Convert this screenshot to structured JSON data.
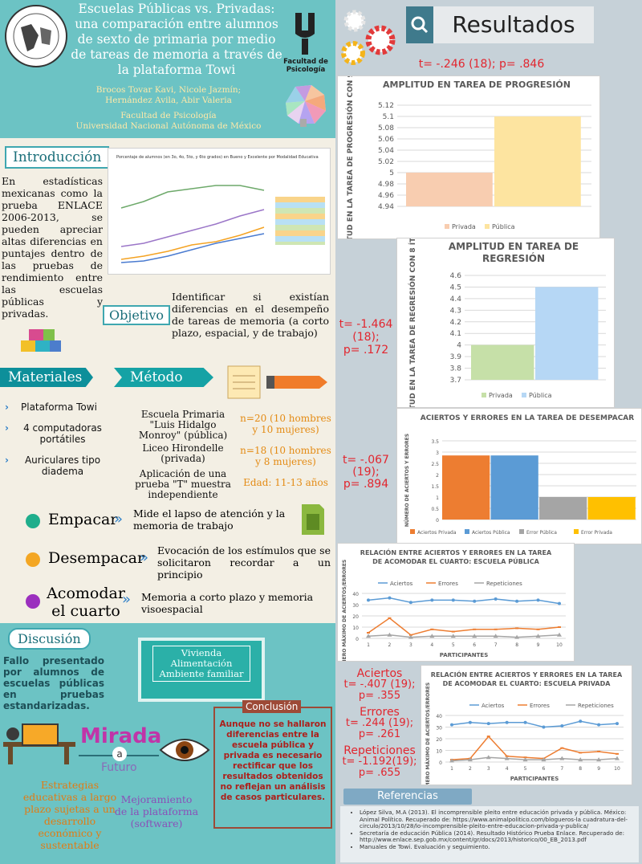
{
  "header": {
    "title": "Escuelas Públicas vs. Privadas: una comparación entre alumnos de sexto de primaria por medio de tareas de memoria a través de la plataforma Towi",
    "authors_line1": "Brocos Tovar Kavi, Nicole Jazmín;",
    "authors_line2": "Hernández Avila, Abir Valeria",
    "faculty": "Facultad de Psicología",
    "university": "Universidad Nacional Autónoma de México",
    "logo_text": "Facultad de Psicología"
  },
  "intro": {
    "heading": "Introducción",
    "text": "En estadísticas mexicanas como la prueba ENLACE 2006-2013, se pueden apreciar altas diferencias en puntajes dentro de las pruebas de rendimiento entre las escuelas públicas y privadas.",
    "chart_title": "Porcentaje de alumnos (en 3o, 4o, 5to, y 6to grados) en Bueno y Excelente por Modalidad Educativa"
  },
  "objetivo": {
    "heading": "Objetivo",
    "text": "Identificar si existían diferencias en el desempeño de tareas de memoria (a corto plazo, espacial, y de trabajo)"
  },
  "materiales": {
    "heading": "Materiales",
    "items": [
      "Plataforma Towi",
      "4 computadoras portátiles",
      "Auriculares tipo diadema"
    ]
  },
  "metodo": {
    "heading": "Método",
    "items": [
      "Escuela Primaria \"Luis Hidalgo Monroy\" (pública)",
      "Liceo Hirondelle (privada)",
      "Aplicación de una prueba \"T\" muestra independiente"
    ],
    "notes": [
      "n=20 (10 hombres y 10 mujeres)",
      "n=18 (10 hombres y 8 mujeres)",
      "Edad: 11-13 años"
    ]
  },
  "tareas": [
    {
      "name": "Empacar",
      "desc": "Mide el lapso de atención y la memoria de trabajo",
      "color": "#1fae8c"
    },
    {
      "name": "Desempacar",
      "desc": "Evocación de los estímulos que se solicitaron recordar a un principio",
      "color": "#f3a623"
    },
    {
      "name": "Acomodar el cuarto",
      "desc": "Memoria a corto plazo y memoria visoespacial",
      "color": "#9b2fbe"
    }
  ],
  "discusion": {
    "heading": "Discusión",
    "text": "Fallo presentado por alumnos de escuelas públicas en pruebas estandarizadas.",
    "board": [
      "Vivienda",
      "Alimentación",
      "Ambiente familiar"
    ],
    "mirada": "Mirada",
    "a": "a",
    "futuro": "Futuro",
    "left": "Estrategias educativas a largo plazo sujetas a un desarrollo económico y sustentable",
    "right": "Mejoramiento de la plataforma (software)",
    "conclusion_heading": "Conclusión",
    "conclusion": "Aunque no se hallaron diferencias entre la escuela pública y privada es necesario rectificar que los resultados obtenidos no reflejan un análisis de casos particulares."
  },
  "resultados": {
    "heading": "Resultados",
    "stat1": "t= -.246 (18); p= .846",
    "stat2": [
      "t= -1.464",
      "(18);",
      "p= .172"
    ],
    "stat3": [
      "t= -.067",
      "(19);",
      "p= .894"
    ],
    "stat4": {
      "aciertos": "Aciertos",
      "aciertos_val": [
        "t= -.407 (19);",
        "p= .355"
      ],
      "errores": "Errores",
      "errores_val": [
        "t= .244 (19);",
        "p= .261"
      ],
      "repeticiones": "Repeticiones",
      "repeticiones_val": [
        "t= -1.192(19);",
        "p= .655"
      ]
    }
  },
  "referencias": {
    "heading": "Referencias",
    "items": [
      "López Silva, M.A (2013). El incomprensible pleito entre educación privada y pública. México: Animal Político. Recuperado de: https://www.animalpolitico.com/blogueros-la cuadratura-del-circulo/2013/10/28/lo-incomprensible-pleito-entre-educacion-privada-y-publica/",
      "Secretaría de educación Pública (2014). Resultado Histórico Prueba Enlace. Recuperado de: http://www.enlace.sep.gob.mx/content/gr/docs/2013/historico/00_EB_2013.pdf",
      "Manuales de Towi. Evaluación y seguimiento."
    ]
  },
  "chart_data": [
    {
      "type": "bar",
      "title": "AMPLITUD EN TAREA DE PROGRESIÓN",
      "ylabel": "AMPLITUD EN LA TAREA DE PROGRESIÓN CON 9 ÍTEMS",
      "categories": [
        "Privada",
        "Pública"
      ],
      "values": [
        5.0,
        5.1
      ],
      "colors": [
        "#f8cdb0",
        "#fde4a0"
      ],
      "ylim": [
        4.94,
        5.12
      ],
      "ticks": [
        "5.12",
        "5.1",
        "5.08",
        "5.06",
        "5.04",
        "5.02",
        "5",
        "4.98",
        "4.96",
        "4.94"
      ],
      "legend": "bottom"
    },
    {
      "type": "bar",
      "title": "AMPLITUD EN TAREA DE REGRESIÓN",
      "ylabel": "AMPLITUD EN LA TAREA DE REGRESIÓN CON 8 ÍTEMS",
      "categories": [
        "Privada",
        "Pública"
      ],
      "values": [
        4.0,
        4.5
      ],
      "colors": [
        "#c6e0a8",
        "#b6d7f5"
      ],
      "ylim": [
        3.7,
        4.6
      ],
      "ticks": [
        "4.6",
        "4.5",
        "4.4",
        "4.3",
        "4.2",
        "4.1",
        "4",
        "3.9",
        "3.8",
        "3.7"
      ],
      "legend": "bottom"
    },
    {
      "type": "bar",
      "title": "ACIERTOS Y ERRORES EN LA TAREA DE DESEMPACAR",
      "ylabel": "NÚMERO DE ACIERTOS Y ERRORES",
      "categories": [
        "Aciertos Privada",
        "Aciertos Pública",
        "Error Pública",
        "Error Privada"
      ],
      "values": [
        2.85,
        2.85,
        1.0,
        1.0
      ],
      "colors": [
        "#ed7d31",
        "#5b9bd5",
        "#a5a5a5",
        "#ffc000"
      ],
      "ylim": [
        0,
        3.5
      ],
      "ticks": [
        "3.5",
        "3",
        "2.5",
        "2",
        "1.5",
        "1",
        "0.5",
        "0"
      ],
      "legend": "bottom"
    },
    {
      "type": "line",
      "title": "RELACIÓN ENTRE ACIERTOS Y ERRORES EN LA TAREA DE ACOMODAR EL CUARTO: ESCUELA PÚBLICA",
      "xlabel": "PARTICIPANTES",
      "ylabel": "NÚMERO MÁXIMO DE ACIERTOS/ERRORES",
      "x": [
        1,
        2,
        3,
        4,
        5,
        6,
        7,
        8,
        9,
        10
      ],
      "ylim": [
        0,
        40
      ],
      "ticks": [
        "40",
        "30",
        "20",
        "10",
        "0"
      ],
      "series": [
        {
          "name": "Aciertos",
          "color": "#5b9bd5",
          "values": [
            34,
            36,
            32,
            34,
            34,
            33,
            35,
            33,
            34,
            31
          ]
        },
        {
          "name": "Errores",
          "color": "#ed7d31",
          "values": [
            5,
            18,
            3,
            8,
            6,
            8,
            8,
            9,
            8,
            10
          ]
        },
        {
          "name": "Repeticiones",
          "color": "#a5a5a5",
          "values": [
            2,
            3,
            1,
            2,
            2,
            2,
            2,
            1,
            2,
            3
          ]
        }
      ],
      "legend": "top"
    },
    {
      "type": "line",
      "title": "RELACIÓN ENTRE ACIERTOS Y ERRORES EN LA TAREA DE ACOMODAR EL CUARTO: ESCUELA PRIVADA",
      "xlabel": "PARTICIPANTES",
      "ylabel": "NÚMERO MÁXIMO DE ACIERTOS/ERRORES",
      "x": [
        1,
        2,
        3,
        4,
        5,
        6,
        7,
        8,
        9,
        10
      ],
      "ylim": [
        0,
        40
      ],
      "ticks": [
        "40",
        "30",
        "20",
        "10",
        "0"
      ],
      "series": [
        {
          "name": "Aciertos",
          "color": "#5b9bd5",
          "values": [
            32,
            34,
            33,
            34,
            34,
            30,
            31,
            35,
            32,
            33
          ]
        },
        {
          "name": "Errores",
          "color": "#ed7d31",
          "values": [
            2,
            3,
            22,
            5,
            4,
            3,
            12,
            8,
            9,
            7
          ]
        },
        {
          "name": "Repeticiones",
          "color": "#a5a5a5",
          "values": [
            1,
            2,
            4,
            3,
            2,
            2,
            3,
            2,
            2,
            3
          ]
        }
      ],
      "legend": "top"
    }
  ]
}
